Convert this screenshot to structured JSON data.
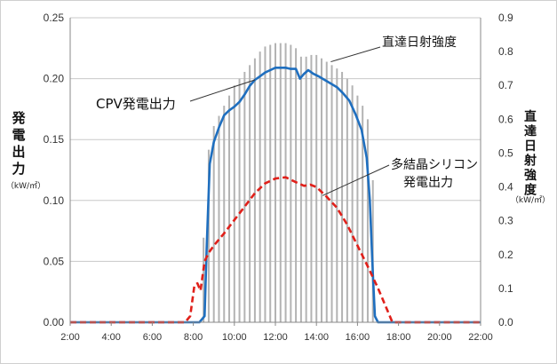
{
  "chart_data": {
    "type": "line",
    "x_ticks": [
      "2:00",
      "4:00",
      "6:00",
      "8:00",
      "10:00",
      "12:00",
      "14:00",
      "16:00",
      "18:00",
      "20:00",
      "22:00"
    ],
    "xlim": [
      2,
      22
    ],
    "y_left": {
      "label": "発電出力",
      "unit": "（kW/㎡）",
      "ticks": [
        "0.00",
        "0.05",
        "0.10",
        "0.15",
        "0.20",
        "0.25"
      ],
      "lim": [
        0,
        0.25
      ]
    },
    "y_right": {
      "label": "直達日射強度",
      "unit": "（kW/㎡）",
      "ticks": [
        "0.0",
        "0.1",
        "0.2",
        "0.3",
        "0.4",
        "0.5",
        "0.6",
        "0.7",
        "0.8",
        "0.9"
      ],
      "lim": [
        0,
        0.9
      ]
    },
    "series": [
      {
        "name": "直達日射強度",
        "kind": "bars",
        "axis": "right",
        "color": "#b3b3b3",
        "points": [
          [
            8.25,
            0.0
          ],
          [
            8.5,
            0.25
          ],
          [
            8.75,
            0.51
          ],
          [
            9,
            0.58
          ],
          [
            9.25,
            0.61
          ],
          [
            9.5,
            0.64
          ],
          [
            9.75,
            0.67
          ],
          [
            10,
            0.7
          ],
          [
            10.25,
            0.72
          ],
          [
            10.5,
            0.74
          ],
          [
            10.75,
            0.76
          ],
          [
            11,
            0.78
          ],
          [
            11.25,
            0.8
          ],
          [
            11.5,
            0.815
          ],
          [
            11.75,
            0.82
          ],
          [
            12,
            0.825
          ],
          [
            12.25,
            0.825
          ],
          [
            12.5,
            0.825
          ],
          [
            12.75,
            0.82
          ],
          [
            13,
            0.81
          ],
          [
            13.25,
            0.785
          ],
          [
            13.5,
            0.785
          ],
          [
            13.75,
            0.79
          ],
          [
            14,
            0.79
          ],
          [
            14.25,
            0.78
          ],
          [
            14.5,
            0.77
          ],
          [
            14.75,
            0.76
          ],
          [
            15,
            0.75
          ],
          [
            15.25,
            0.74
          ],
          [
            15.5,
            0.72
          ],
          [
            15.75,
            0.7
          ],
          [
            16,
            0.67
          ],
          [
            16.25,
            0.64
          ],
          [
            16.5,
            0.6
          ],
          [
            16.75,
            0.42
          ],
          [
            17,
            0.0
          ]
        ]
      },
      {
        "name": "CPV発電出力",
        "kind": "line",
        "axis": "left",
        "color": "#1f6fbf",
        "points": [
          [
            2,
            0
          ],
          [
            8.3,
            0
          ],
          [
            8.55,
            0.005
          ],
          [
            8.65,
            0.06
          ],
          [
            8.8,
            0.13
          ],
          [
            9,
            0.148
          ],
          [
            9.25,
            0.16
          ],
          [
            9.5,
            0.17
          ],
          [
            9.75,
            0.174
          ],
          [
            10,
            0.177
          ],
          [
            10.25,
            0.181
          ],
          [
            10.5,
            0.187
          ],
          [
            10.75,
            0.194
          ],
          [
            11,
            0.199
          ],
          [
            11.25,
            0.202
          ],
          [
            11.5,
            0.205
          ],
          [
            11.75,
            0.207
          ],
          [
            12,
            0.209
          ],
          [
            12.25,
            0.209
          ],
          [
            12.5,
            0.209
          ],
          [
            12.75,
            0.208
          ],
          [
            13,
            0.208
          ],
          [
            13.2,
            0.2
          ],
          [
            13.4,
            0.204
          ],
          [
            13.6,
            0.207
          ],
          [
            13.85,
            0.204
          ],
          [
            14.1,
            0.202
          ],
          [
            14.4,
            0.199
          ],
          [
            14.7,
            0.196
          ],
          [
            15,
            0.193
          ],
          [
            15.3,
            0.188
          ],
          [
            15.6,
            0.182
          ],
          [
            15.9,
            0.171
          ],
          [
            16.2,
            0.158
          ],
          [
            16.45,
            0.135
          ],
          [
            16.6,
            0.1
          ],
          [
            16.75,
            0.04
          ],
          [
            16.85,
            0.005
          ],
          [
            17,
            0
          ],
          [
            22,
            0
          ]
        ]
      },
      {
        "name": "多結晶シリコン\n発電出力",
        "kind": "dashed-line",
        "axis": "left",
        "color": "#e0201a",
        "points": [
          [
            2,
            0
          ],
          [
            7.6,
            0
          ],
          [
            7.85,
            0.005
          ],
          [
            8.05,
            0.03
          ],
          [
            8.2,
            0.032
          ],
          [
            8.35,
            0.026
          ],
          [
            8.55,
            0.05
          ],
          [
            8.75,
            0.057
          ],
          [
            9,
            0.063
          ],
          [
            9.5,
            0.073
          ],
          [
            10,
            0.084
          ],
          [
            10.5,
            0.095
          ],
          [
            11,
            0.106
          ],
          [
            11.5,
            0.114
          ],
          [
            12,
            0.118
          ],
          [
            12.5,
            0.119
          ],
          [
            13,
            0.115
          ],
          [
            13.4,
            0.112
          ],
          [
            13.7,
            0.113
          ],
          [
            14,
            0.111
          ],
          [
            14.5,
            0.103
          ],
          [
            15,
            0.094
          ],
          [
            15.5,
            0.08
          ],
          [
            16,
            0.063
          ],
          [
            16.5,
            0.046
          ],
          [
            17,
            0.028
          ],
          [
            17.5,
            0.008
          ],
          [
            17.7,
            0
          ],
          [
            22,
            0
          ]
        ]
      }
    ],
    "grid": "horizontal",
    "annotations": [
      {
        "label": "直達日射強度",
        "at": [
          14.7,
          0.77
        ],
        "axis": "right"
      },
      {
        "label": "CPV発電出力",
        "at": [
          11.0,
          0.199
        ],
        "axis": "left"
      },
      {
        "label": "多結晶シリコン\n発電出力",
        "at": [
          14.3,
          0.104
        ],
        "axis": "left"
      }
    ]
  }
}
